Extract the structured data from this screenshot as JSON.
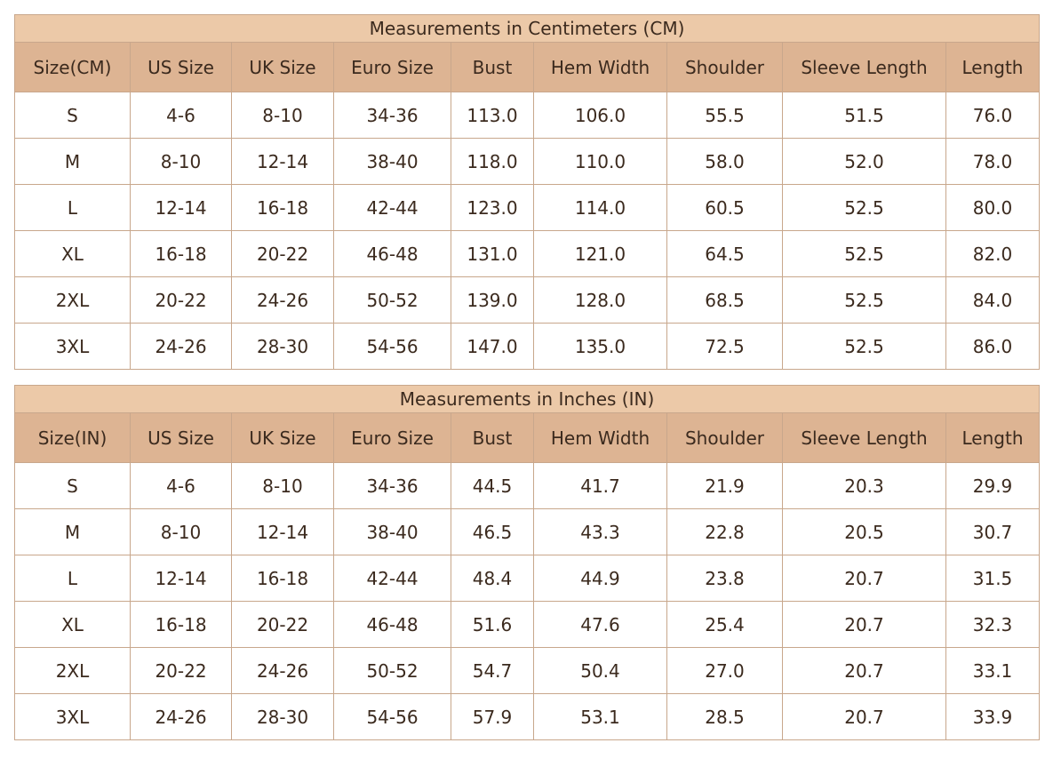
{
  "tables": [
    {
      "title": "Measurements in Centimeters (CM)",
      "header": [
        "Size(CM)",
        "US Size",
        "UK Size",
        "Euro Size",
        "Bust",
        "Hem Width",
        "Shoulder",
        "Sleeve Length",
        "Length"
      ],
      "rows": [
        [
          "S",
          "4-6",
          "8-10",
          "34-36",
          "113.0",
          "106.0",
          "55.5",
          "51.5",
          "76.0"
        ],
        [
          "M",
          "8-10",
          "12-14",
          "38-40",
          "118.0",
          "110.0",
          "58.0",
          "52.0",
          "78.0"
        ],
        [
          "L",
          "12-14",
          "16-18",
          "42-44",
          "123.0",
          "114.0",
          "60.5",
          "52.5",
          "80.0"
        ],
        [
          "XL",
          "16-18",
          "20-22",
          "46-48",
          "131.0",
          "121.0",
          "64.5",
          "52.5",
          "82.0"
        ],
        [
          "2XL",
          "20-22",
          "24-26",
          "50-52",
          "139.0",
          "128.0",
          "68.5",
          "52.5",
          "84.0"
        ],
        [
          "3XL",
          "24-26",
          "28-30",
          "54-56",
          "147.0",
          "135.0",
          "72.5",
          "52.5",
          "86.0"
        ]
      ]
    },
    {
      "title": "Measurements in Inches (IN)",
      "header": [
        "Size(IN)",
        "US Size",
        "UK Size",
        "Euro Size",
        "Bust",
        "Hem Width",
        "Shoulder",
        "Sleeve Length",
        "Length"
      ],
      "rows": [
        [
          "S",
          "4-6",
          "8-10",
          "34-36",
          "44.5",
          "41.7",
          "21.9",
          "20.3",
          "29.9"
        ],
        [
          "M",
          "8-10",
          "12-14",
          "38-40",
          "46.5",
          "43.3",
          "22.8",
          "20.5",
          "30.7"
        ],
        [
          "L",
          "12-14",
          "16-18",
          "42-44",
          "48.4",
          "44.9",
          "23.8",
          "20.7",
          "31.5"
        ],
        [
          "XL",
          "16-18",
          "20-22",
          "46-48",
          "51.6",
          "47.6",
          "25.4",
          "20.7",
          "32.3"
        ],
        [
          "2XL",
          "20-22",
          "24-26",
          "50-52",
          "54.7",
          "50.4",
          "27.0",
          "20.7",
          "33.1"
        ],
        [
          "3XL",
          "24-26",
          "28-30",
          "54-56",
          "57.9",
          "53.1",
          "28.5",
          "20.7",
          "33.9"
        ]
      ]
    }
  ]
}
